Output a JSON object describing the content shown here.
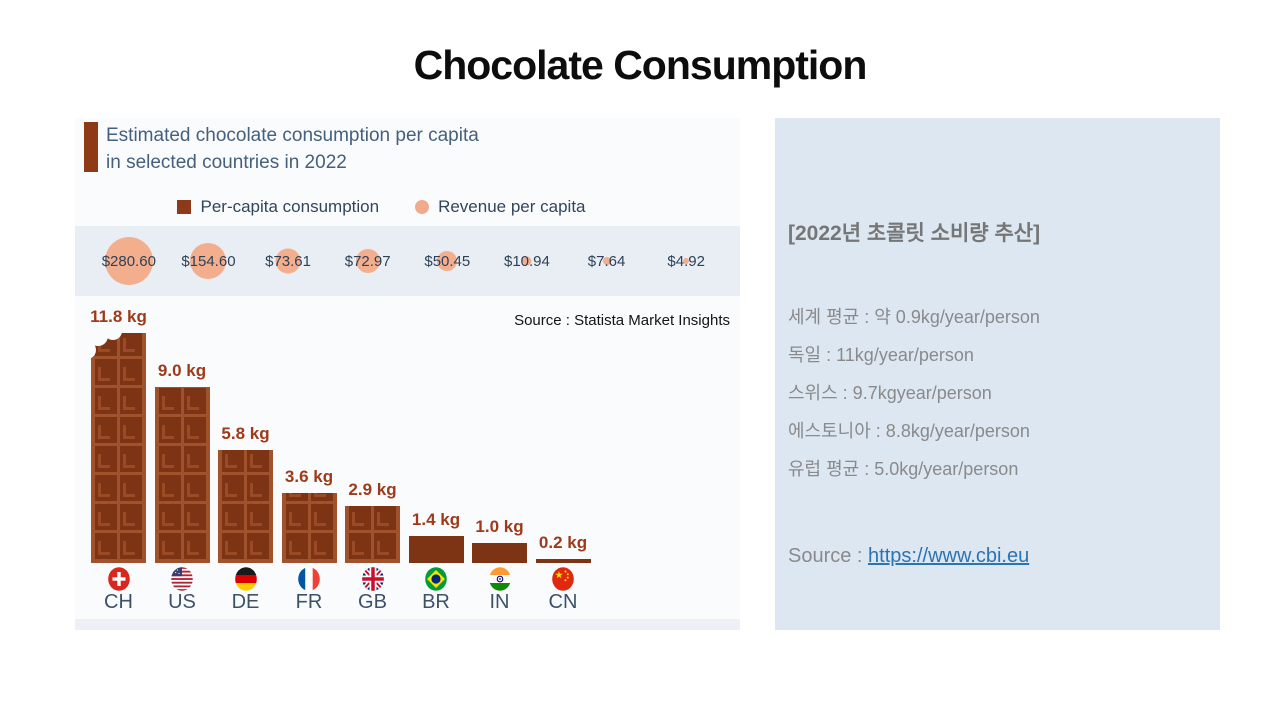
{
  "slide": {
    "title": "Chocolate Consumption"
  },
  "chart": {
    "title_line1": "Estimated chocolate consumption per capita",
    "title_line2": "in selected countries in 2022",
    "legend": {
      "consumption": "Per-capita consumption",
      "revenue": "Revenue per capita"
    },
    "source": "Source : Statista Market Insights"
  },
  "chart_data": {
    "type": "bar",
    "title": "Estimated chocolate consumption per capita in selected countries in 2022",
    "categories": [
      "CH",
      "US",
      "DE",
      "FR",
      "GB",
      "BR",
      "IN",
      "CN"
    ],
    "series": [
      {
        "name": "Per-capita consumption",
        "unit": "kg",
        "values": [
          11.8,
          9.0,
          5.8,
          3.6,
          2.9,
          1.4,
          1.0,
          0.2
        ],
        "labels": [
          "11.8 kg",
          "9.0 kg",
          "5.8 kg",
          "3.6 kg",
          "2.9 kg",
          "1.4 kg",
          "1.0 kg",
          "0.2 kg"
        ]
      },
      {
        "name": "Revenue per capita",
        "unit": "USD",
        "values": [
          280.6,
          154.6,
          73.61,
          72.97,
          50.45,
          10.94,
          7.64,
          4.92
        ],
        "labels": [
          "$280.60",
          "$154.60",
          "$73.61",
          "$72.97",
          "$50.45",
          "$10.94",
          "$7.64",
          "$4.92"
        ]
      }
    ],
    "legend_position": "top",
    "grid": false,
    "source": "Statista Market Insights"
  },
  "info_panel": {
    "heading": "[2022년 초콜릿 소비량 추산]",
    "lines": [
      "세계 평균 : 약 0.9kg/year/person",
      "독일 : 11kg/year/person",
      "스위스 : 9.7kgyear/person",
      "에스토니아 : 8.8kg/year/person",
      "유럽 평균 : 5.0kg/year/person"
    ],
    "source_prefix": "Source : ",
    "source_link": "https://www.cbi.eu"
  },
  "colors": {
    "chocolate_frame": "#a0522d",
    "chocolate_dark": "#7c3415",
    "chocolate_highlight": "#9a4b26",
    "accent_brown": "#8e3a17",
    "peach": "#f3ae8d",
    "band": "#e9edf4",
    "panel_blue": "#dce7f2",
    "link_blue": "#2c73b4",
    "bar_label_brown": "#9e3a19",
    "text_slate": "#31465c"
  }
}
